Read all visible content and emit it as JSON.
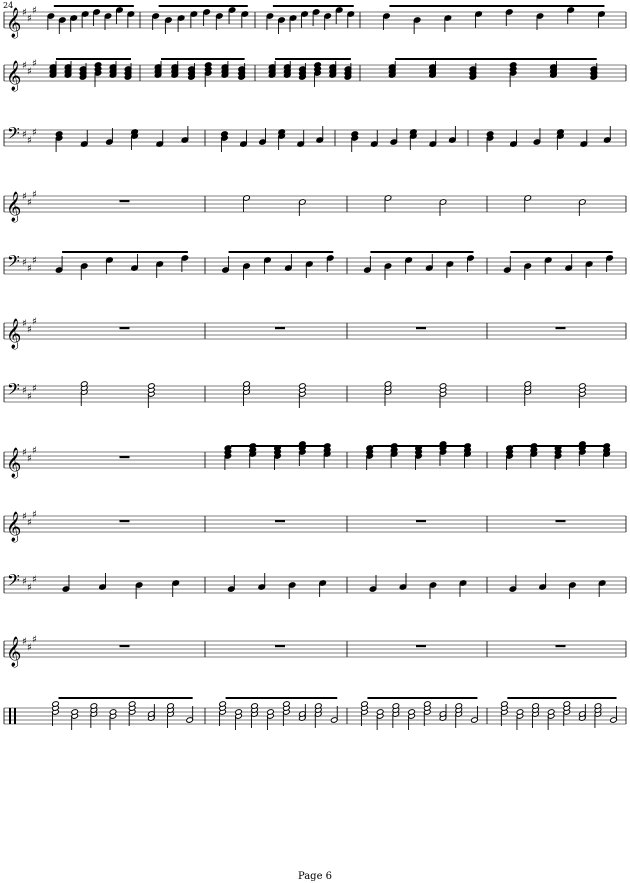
{
  "page": {
    "measure_number": "24",
    "footer": "Page 6"
  },
  "key_signature": "A major",
  "sharps": 3,
  "staves": [
    {
      "id": "staff-1",
      "clef": "treble",
      "content": "melody"
    },
    {
      "id": "staff-2",
      "clef": "treble",
      "content": "chords"
    },
    {
      "id": "staff-3",
      "clef": "bass",
      "content": "bass-chords"
    },
    {
      "id": "staff-4",
      "clef": "treble",
      "content": "long-notes"
    },
    {
      "id": "staff-5",
      "clef": "bass",
      "content": "arpeggios"
    },
    {
      "id": "staff-6",
      "clef": "treble",
      "content": "rests"
    },
    {
      "id": "staff-7",
      "clef": "bass",
      "content": "sustained-chords"
    },
    {
      "id": "staff-8",
      "clef": "treble",
      "content": "chord-figures"
    },
    {
      "id": "staff-9",
      "clef": "treble",
      "content": "rests"
    },
    {
      "id": "staff-10",
      "clef": "bass",
      "content": "bass-line"
    },
    {
      "id": "staff-11",
      "clef": "treble",
      "content": "rests"
    },
    {
      "id": "staff-12",
      "clef": "percussion",
      "content": "percussion"
    }
  ]
}
